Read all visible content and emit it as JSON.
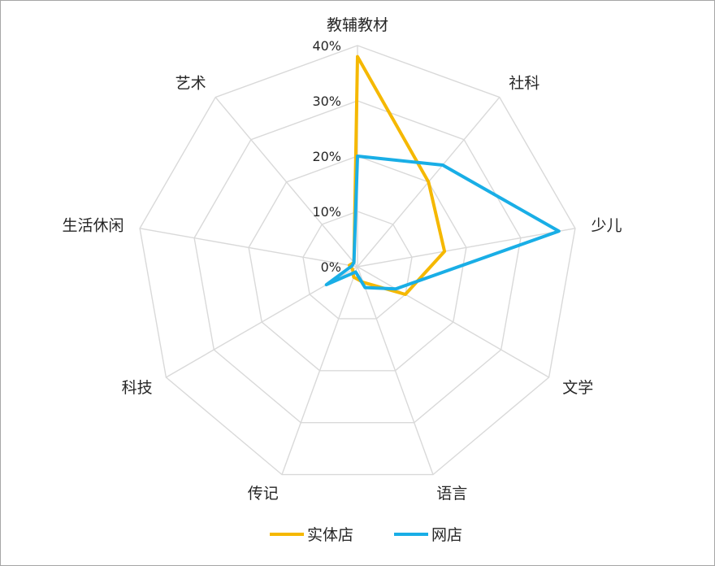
{
  "chart_data": {
    "type": "radar",
    "title": "",
    "categories": [
      "教辅教材",
      "社科",
      "少儿",
      "文学",
      "语言",
      "传记",
      "科技",
      "生活休闲",
      "艺术"
    ],
    "r_ticks": [
      "0%",
      "10%",
      "20%",
      "30%",
      "40%"
    ],
    "r_range": [
      0,
      0.4
    ],
    "grid": true,
    "legend_position": "bottom",
    "series": [
      {
        "name": "实体店",
        "color": "#f5b800",
        "values": [
          0.38,
          0.2,
          0.16,
          0.1,
          0.03,
          0.02,
          0.01,
          0.015,
          0.01
        ]
      },
      {
        "name": "网店",
        "color": "#19aee6",
        "values": [
          0.2,
          0.24,
          0.37,
          0.08,
          0.04,
          0.01,
          0.065,
          0.01,
          0.01
        ]
      }
    ]
  }
}
